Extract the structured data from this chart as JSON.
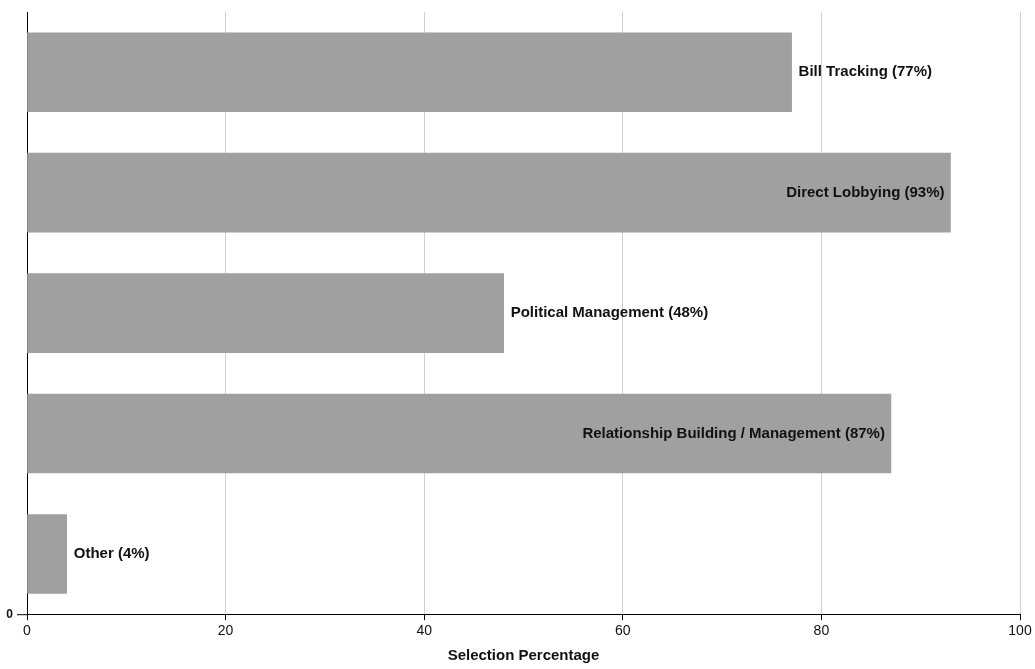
{
  "chart_data": {
    "type": "bar",
    "orientation": "horizontal",
    "categories": [
      null,
      null,
      null,
      null,
      null
    ],
    "values": [
      77,
      93,
      48,
      87,
      4
    ],
    "color": "#a0a0a0",
    "value_labels": [
      "Bill Tracking (77%)",
      "Direct Lobbying (93%)",
      "Political Management (48%)",
      "Relationship Building / Management (87%)",
      "Other (4%)"
    ],
    "xlim": [
      0,
      100
    ],
    "xticks": [
      0,
      20,
      40,
      60,
      80,
      100
    ],
    "xlabel": "Selection Percentage",
    "grid": "x",
    "legend": false,
    "annotations": [
      "0"
    ]
  }
}
